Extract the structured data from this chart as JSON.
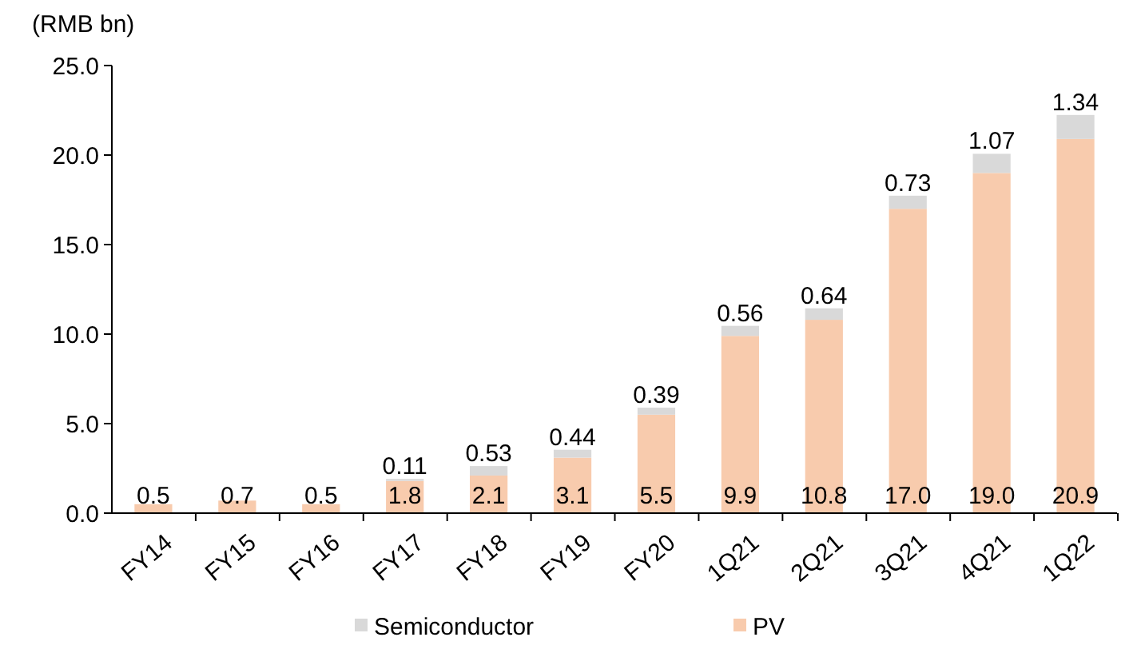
{
  "chart_data": {
    "type": "bar",
    "stacked": true,
    "ylabel": "(RMB bn)",
    "categories": [
      "FY14",
      "FY15",
      "FY16",
      "FY17",
      "FY18",
      "FY19",
      "FY20",
      "1Q21",
      "2Q21",
      "3Q21",
      "4Q21",
      "1Q22"
    ],
    "series": [
      {
        "name": "PV",
        "color": "#f8cbad",
        "values": [
          0.5,
          0.7,
          0.5,
          1.8,
          2.1,
          3.1,
          5.5,
          9.9,
          10.8,
          17.0,
          19.0,
          20.9
        ],
        "value_labels": [
          "0.5",
          "0.7",
          "0.5",
          "1.8",
          "2.1",
          "3.1",
          "5.5",
          "9.9",
          "10.8",
          "17.0",
          "19.0",
          "20.9"
        ]
      },
      {
        "name": "Semiconductor",
        "color": "#d9d9d9",
        "values": [
          null,
          null,
          null,
          0.11,
          0.53,
          0.44,
          0.39,
          0.56,
          0.64,
          0.73,
          1.07,
          1.34
        ]
      }
    ],
    "data_labels": true,
    "ylim": [
      0,
      25
    ],
    "yticks": [
      {
        "value": 0,
        "label": "0.0"
      },
      {
        "value": 5,
        "label": "5.0"
      },
      {
        "value": 10,
        "label": "10.0"
      },
      {
        "value": 15,
        "label": "15.0"
      },
      {
        "value": 20,
        "label": "20.0"
      },
      {
        "value": 25,
        "label": "25.0"
      }
    ],
    "grid": false,
    "legend": "bottom"
  }
}
